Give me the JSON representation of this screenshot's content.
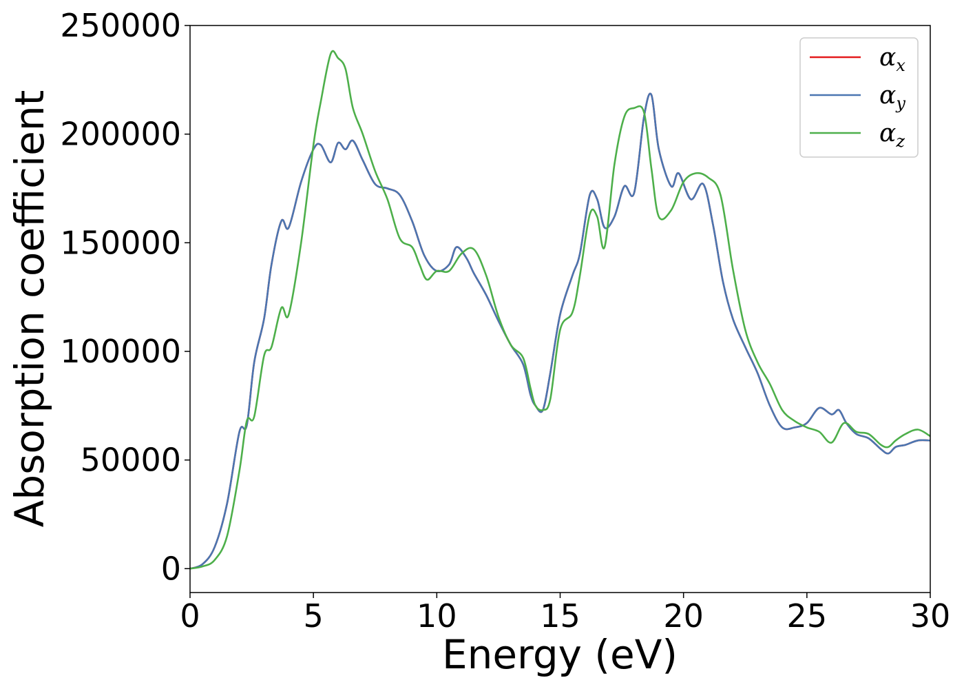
{
  "chart_data": {
    "type": "line",
    "xlabel": "Energy (eV)",
    "ylabel": "Absorption coefficient",
    "xlim": [
      0,
      30
    ],
    "ylim": [
      -11000,
      250000
    ],
    "x_ticks": [
      "0",
      "5",
      "10",
      "15",
      "20",
      "25",
      "30"
    ],
    "y_ticks": [
      "0",
      "50000",
      "100000",
      "150000",
      "200000",
      "250000"
    ],
    "grid": false,
    "legend_position": "top-right",
    "series": [
      {
        "name": "αx",
        "symbol": "α",
        "sub": "x",
        "color": "#e41a1c",
        "x": [
          0,
          0.5,
          1.0,
          1.5,
          2.0,
          2.3,
          2.6,
          3.0,
          3.3,
          3.7,
          4.0,
          4.5,
          5.0,
          5.3,
          5.7,
          6.0,
          6.3,
          6.6,
          7.0,
          7.5,
          8.0,
          8.5,
          9.0,
          9.5,
          10.0,
          10.5,
          10.8,
          11.2,
          11.5,
          12.0,
          12.5,
          13.0,
          13.5,
          13.8,
          14.0,
          14.3,
          14.6,
          15.0,
          15.5,
          15.8,
          16.2,
          16.5,
          16.8,
          17.2,
          17.6,
          18.0,
          18.4,
          18.7,
          19.0,
          19.5,
          19.8,
          20.3,
          20.8,
          21.2,
          21.6,
          22.0,
          22.5,
          23.0,
          23.5,
          24.0,
          24.5,
          25.0,
          25.5,
          26.0,
          26.3,
          26.6,
          27.0,
          27.5,
          28.0,
          28.3,
          28.6,
          29.0,
          29.5,
          30.0
        ],
        "y": [
          0,
          2000,
          10000,
          30000,
          63000,
          66000,
          95000,
          115000,
          140000,
          160000,
          157000,
          178000,
          193000,
          195000,
          187000,
          196000,
          193000,
          197000,
          188000,
          177000,
          175000,
          172000,
          160000,
          144000,
          137000,
          140000,
          148000,
          143000,
          136000,
          126000,
          114000,
          103000,
          94000,
          80000,
          75000,
          73000,
          90000,
          117000,
          135000,
          145000,
          172000,
          170000,
          157000,
          162000,
          176000,
          173000,
          208000,
          218000,
          193000,
          176000,
          182000,
          170000,
          177000,
          158000,
          132000,
          115000,
          102000,
          90000,
          75000,
          65000,
          65000,
          67000,
          74000,
          71000,
          73000,
          67000,
          62000,
          60000,
          55000,
          53000,
          56000,
          57000,
          59000,
          59000
        ]
      },
      {
        "name": "αy",
        "symbol": "α",
        "sub": "y",
        "color": "#4a76b1",
        "x": [
          0,
          0.5,
          1.0,
          1.5,
          2.0,
          2.3,
          2.6,
          3.0,
          3.3,
          3.7,
          4.0,
          4.5,
          5.0,
          5.3,
          5.7,
          6.0,
          6.3,
          6.6,
          7.0,
          7.5,
          8.0,
          8.5,
          9.0,
          9.5,
          10.0,
          10.5,
          10.8,
          11.2,
          11.5,
          12.0,
          12.5,
          13.0,
          13.5,
          13.8,
          14.0,
          14.3,
          14.6,
          15.0,
          15.5,
          15.8,
          16.2,
          16.5,
          16.8,
          17.2,
          17.6,
          18.0,
          18.4,
          18.7,
          19.0,
          19.5,
          19.8,
          20.3,
          20.8,
          21.2,
          21.6,
          22.0,
          22.5,
          23.0,
          23.5,
          24.0,
          24.5,
          25.0,
          25.5,
          26.0,
          26.3,
          26.6,
          27.0,
          27.5,
          28.0,
          28.3,
          28.6,
          29.0,
          29.5,
          30.0
        ],
        "y": [
          0,
          2000,
          10000,
          30000,
          63000,
          66000,
          95000,
          115000,
          140000,
          160000,
          157000,
          178000,
          193000,
          195000,
          187000,
          196000,
          193000,
          197000,
          188000,
          177000,
          175000,
          172000,
          160000,
          144000,
          137000,
          140000,
          148000,
          143000,
          136000,
          126000,
          114000,
          103000,
          94000,
          80000,
          75000,
          73000,
          90000,
          117000,
          135000,
          145000,
          172000,
          170000,
          157000,
          162000,
          176000,
          173000,
          208000,
          218000,
          193000,
          176000,
          182000,
          170000,
          177000,
          158000,
          132000,
          115000,
          102000,
          90000,
          75000,
          65000,
          65000,
          67000,
          74000,
          71000,
          73000,
          67000,
          62000,
          60000,
          55000,
          53000,
          56000,
          57000,
          59000,
          59000
        ]
      },
      {
        "name": "αz",
        "symbol": "α",
        "sub": "z",
        "color": "#4daf4a",
        "x": [
          0,
          0.5,
          1.0,
          1.5,
          2.0,
          2.3,
          2.6,
          3.0,
          3.3,
          3.7,
          4.0,
          4.5,
          5.0,
          5.3,
          5.7,
          6.0,
          6.3,
          6.6,
          7.0,
          7.5,
          8.0,
          8.5,
          9.0,
          9.3,
          9.6,
          10.0,
          10.5,
          11.0,
          11.5,
          12.0,
          12.5,
          13.0,
          13.5,
          13.8,
          14.0,
          14.3,
          14.6,
          15.0,
          15.5,
          15.8,
          16.2,
          16.5,
          16.8,
          17.2,
          17.6,
          18.0,
          18.4,
          18.7,
          19.0,
          19.5,
          20.0,
          20.5,
          21.0,
          21.5,
          22.0,
          22.5,
          23.0,
          23.5,
          24.0,
          24.5,
          25.0,
          25.5,
          26.0,
          26.5,
          27.0,
          27.5,
          28.0,
          28.3,
          28.6,
          29.0,
          29.5,
          30.0
        ],
        "y": [
          0,
          1000,
          4000,
          15000,
          45000,
          68000,
          70000,
          98000,
          102000,
          120000,
          117000,
          150000,
          195000,
          215000,
          237000,
          235000,
          230000,
          212000,
          200000,
          183000,
          170000,
          152000,
          148000,
          140000,
          133000,
          137000,
          137000,
          145000,
          147000,
          135000,
          116000,
          103000,
          97000,
          83000,
          75000,
          73000,
          78000,
          110000,
          118000,
          135000,
          163000,
          162000,
          148000,
          186000,
          208000,
          212000,
          210000,
          184000,
          162000,
          165000,
          178000,
          182000,
          180000,
          172000,
          138000,
          110000,
          95000,
          85000,
          73000,
          68000,
          65000,
          63000,
          58000,
          67000,
          63000,
          62000,
          57000,
          56000,
          59000,
          62000,
          64000,
          61000
        ]
      }
    ]
  }
}
